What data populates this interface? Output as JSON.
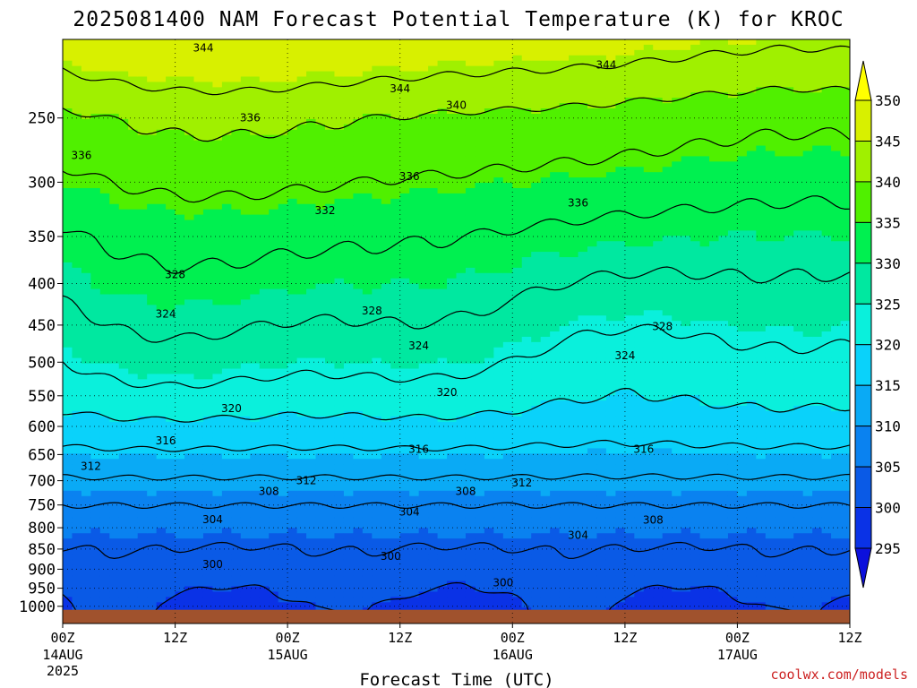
{
  "chart_data": {
    "type": "heatmap",
    "title": "2025081400 NAM Forecast Potential Temperature (K) for KROC",
    "xlabel": "Forecast Time (UTC)",
    "ylabel": "",
    "y_axis": {
      "scale": "log-pressure",
      "range": [
        1050,
        200
      ],
      "ticks": [
        250,
        300,
        350,
        400,
        450,
        500,
        550,
        600,
        650,
        700,
        750,
        800,
        850,
        900,
        950,
        1000
      ]
    },
    "x_axis": {
      "range": [
        "2025-08-14T00Z",
        "2025-08-17T12Z"
      ],
      "ticks": [
        {
          "t": 0,
          "label": "00Z",
          "sub": "14AUG",
          "sub2": "2025"
        },
        {
          "t": 12,
          "label": "12Z",
          "sub": "",
          "sub2": ""
        },
        {
          "t": 24,
          "label": "00Z",
          "sub": "15AUG",
          "sub2": ""
        },
        {
          "t": 36,
          "label": "12Z",
          "sub": "",
          "sub2": ""
        },
        {
          "t": 48,
          "label": "00Z",
          "sub": "16AUG",
          "sub2": ""
        },
        {
          "t": 60,
          "label": "12Z",
          "sub": "",
          "sub2": ""
        },
        {
          "t": 72,
          "label": "00Z",
          "sub": "17AUG",
          "sub2": ""
        },
        {
          "t": 84,
          "label": "12Z",
          "sub": "",
          "sub2": ""
        }
      ]
    },
    "grid": true,
    "colorbar": {
      "levels": [
        295,
        300,
        305,
        310,
        315,
        320,
        325,
        330,
        335,
        340,
        345,
        350
      ],
      "colors": [
        "#0c10dc",
        "#0a32e6",
        "#0a5ae6",
        "#0a82f0",
        "#0aaaf5",
        "#0ad2fa",
        "#0af0dc",
        "#00e8a0",
        "#00f050",
        "#50f000",
        "#a0f000",
        "#d8f000",
        "#ffff00"
      ]
    },
    "isentropes_K": [
      300,
      304,
      308,
      312,
      316,
      320,
      324,
      328,
      332,
      336,
      340,
      344
    ],
    "surface_pressure_hPa": 1010,
    "surface_color": "#a0522d",
    "contour_labels": [
      {
        "text": "344",
        "t": 15,
        "p": 205
      },
      {
        "text": "344",
        "t": 36,
        "p": 230
      },
      {
        "text": "340",
        "t": 42,
        "p": 241
      },
      {
        "text": "344",
        "t": 58,
        "p": 215
      },
      {
        "text": "336",
        "t": 2,
        "p": 278
      },
      {
        "text": "336",
        "t": 20,
        "p": 250
      },
      {
        "text": "336",
        "t": 37,
        "p": 295
      },
      {
        "text": "336",
        "t": 55,
        "p": 318
      },
      {
        "text": "332",
        "t": 28,
        "p": 325
      },
      {
        "text": "328",
        "t": 12,
        "p": 390
      },
      {
        "text": "328",
        "t": 33,
        "p": 432
      },
      {
        "text": "328",
        "t": 64,
        "p": 452
      },
      {
        "text": "324",
        "t": 11,
        "p": 436
      },
      {
        "text": "324",
        "t": 38,
        "p": 477
      },
      {
        "text": "324",
        "t": 60,
        "p": 491
      },
      {
        "text": "320",
        "t": 41,
        "p": 545
      },
      {
        "text": "320",
        "t": 18,
        "p": 570
      },
      {
        "text": "316",
        "t": 11,
        "p": 625
      },
      {
        "text": "316",
        "t": 38,
        "p": 640
      },
      {
        "text": "316",
        "t": 62,
        "p": 640
      },
      {
        "text": "312",
        "t": 3,
        "p": 672
      },
      {
        "text": "312",
        "t": 26,
        "p": 700
      },
      {
        "text": "312",
        "t": 49,
        "p": 704
      },
      {
        "text": "308",
        "t": 22,
        "p": 722
      },
      {
        "text": "308",
        "t": 43,
        "p": 722
      },
      {
        "text": "308",
        "t": 63,
        "p": 783
      },
      {
        "text": "304",
        "t": 16,
        "p": 782
      },
      {
        "text": "304",
        "t": 37,
        "p": 765
      },
      {
        "text": "304",
        "t": 55,
        "p": 817
      },
      {
        "text": "300",
        "t": 16,
        "p": 888
      },
      {
        "text": "300",
        "t": 35,
        "p": 868
      },
      {
        "text": "300",
        "t": 47,
        "p": 935
      }
    ]
  },
  "watermark": "coolwx.com/models"
}
